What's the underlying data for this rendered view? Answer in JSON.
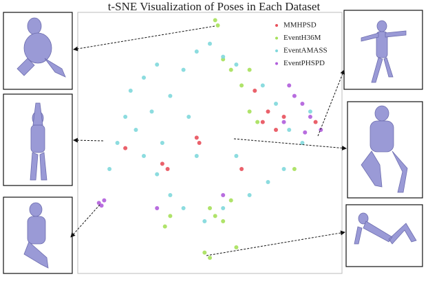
{
  "chart_data": {
    "type": "scatter",
    "title": "t-SNE Visualization of Poses in Each Dataset",
    "xlim": [
      0,
      100
    ],
    "ylim": [
      0,
      100
    ],
    "series": [
      {
        "name": "MMHPSD",
        "color": "#e8505b",
        "x": [
          70,
          72,
          75,
          78,
          45,
          46,
          32,
          34,
          18,
          67,
          90,
          62
        ],
        "values": [
          58,
          62,
          55,
          60,
          52,
          50,
          42,
          40,
          48,
          70,
          58,
          40
        ]
      },
      {
        "name": "EventH36M",
        "color": "#a6e05a",
        "x": [
          52,
          53,
          55,
          58,
          62,
          65,
          68,
          50,
          52,
          55,
          58,
          35,
          33,
          65,
          48,
          50,
          82,
          60
        ],
        "values": [
          97,
          95,
          82,
          78,
          72,
          62,
          58,
          25,
          22,
          20,
          28,
          22,
          18,
          78,
          8,
          6,
          40,
          10
        ]
      },
      {
        "name": "EventAMASS",
        "color": "#7fd8dc",
        "x": [
          20,
          25,
          30,
          18,
          22,
          28,
          35,
          15,
          25,
          32,
          40,
          45,
          50,
          55,
          60,
          70,
          75,
          80,
          85,
          78,
          72,
          65,
          55,
          48,
          40,
          35,
          30,
          45,
          60,
          88,
          12,
          42
        ],
        "values": [
          70,
          75,
          80,
          60,
          55,
          62,
          68,
          50,
          45,
          50,
          78,
          85,
          88,
          83,
          80,
          72,
          65,
          55,
          50,
          40,
          35,
          30,
          25,
          20,
          25,
          30,
          38,
          45,
          45,
          62,
          40,
          60
        ]
      },
      {
        "name": "EventPHSPD",
        "color": "#b05ddb",
        "x": [
          8,
          9,
          10,
          82,
          85,
          88,
          80,
          78,
          30,
          55,
          92,
          86
        ],
        "values": [
          27,
          26,
          28,
          68,
          65,
          60,
          72,
          58,
          25,
          30,
          55,
          54
        ]
      }
    ]
  }
}
